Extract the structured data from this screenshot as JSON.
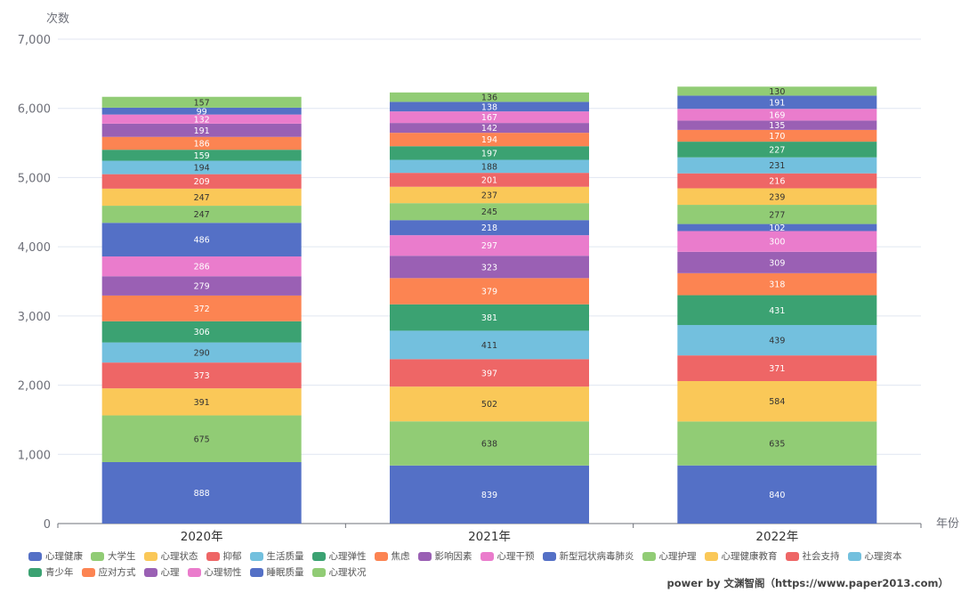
{
  "chart_data": {
    "type": "bar",
    "stacked": true,
    "ylabel": "次数",
    "xlabel": "年份",
    "ylim": [
      0,
      7000
    ],
    "yticks": [
      "0",
      "1,000",
      "2,000",
      "3,000",
      "4,000",
      "5,000",
      "6,000",
      "7,000"
    ],
    "categories": [
      "2020年",
      "2021年",
      "2022年"
    ],
    "grid": true,
    "legend_position": "bottom",
    "series": [
      {
        "name": "心理健康",
        "color": "#5470c6",
        "values": [
          888,
          839,
          840
        ]
      },
      {
        "name": "大学生",
        "color": "#91cc75",
        "values": [
          675,
          638,
          635
        ]
      },
      {
        "name": "心理状态",
        "color": "#fac858",
        "values": [
          391,
          502,
          584
        ]
      },
      {
        "name": "抑郁",
        "color": "#ee6666",
        "values": [
          373,
          397,
          371
        ]
      },
      {
        "name": "生活质量",
        "color": "#73c0de",
        "values": [
          290,
          411,
          439
        ]
      },
      {
        "name": "心理弹性",
        "color": "#3ba272",
        "values": [
          306,
          381,
          431
        ]
      },
      {
        "name": "焦虑",
        "color": "#fc8452",
        "values": [
          372,
          379,
          318
        ]
      },
      {
        "name": "影响因素",
        "color": "#9a60b4",
        "values": [
          279,
          323,
          309
        ]
      },
      {
        "name": "心理干预",
        "color": "#ea7ccc",
        "values": [
          286,
          297,
          300
        ]
      },
      {
        "name": "新型冠状病毒肺炎",
        "color": "#5470c6",
        "values": [
          486,
          218,
          102
        ]
      },
      {
        "name": "心理护理",
        "color": "#91cc75",
        "values": [
          247,
          245,
          277
        ]
      },
      {
        "name": "心理健康教育",
        "color": "#fac858",
        "values": [
          247,
          237,
          239
        ]
      },
      {
        "name": "社会支持",
        "color": "#ee6666",
        "values": [
          209,
          201,
          216
        ]
      },
      {
        "name": "心理资本",
        "color": "#73c0de",
        "values": [
          194,
          188,
          231
        ]
      },
      {
        "name": "青少年",
        "color": "#3ba272",
        "values": [
          159,
          197,
          227
        ]
      },
      {
        "name": "应对方式",
        "color": "#fc8452",
        "values": [
          186,
          194,
          170
        ]
      },
      {
        "name": "心理",
        "color": "#9a60b4",
        "values": [
          191,
          142,
          135
        ]
      },
      {
        "name": "心理韧性",
        "color": "#ea7ccc",
        "values": [
          132,
          167,
          169
        ]
      },
      {
        "name": "睡眠质量",
        "color": "#5470c6",
        "values": [
          99,
          138,
          191
        ]
      },
      {
        "name": "心理状况",
        "color": "#91cc75",
        "values": [
          157,
          136,
          130
        ]
      }
    ]
  },
  "footer": {
    "text": "power by 文渊智阁（https://www.paper2013.com）"
  }
}
